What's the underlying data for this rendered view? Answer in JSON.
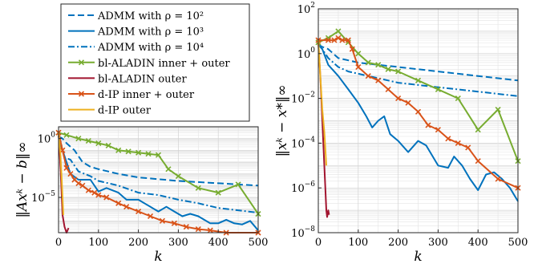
{
  "figure": {
    "legend": [
      {
        "label": "ADMM with ρ = 10²",
        "color": "#0072BD",
        "dash": "dashed",
        "marker": ""
      },
      {
        "label": "ADMM with ρ = 10³",
        "color": "#0072BD",
        "dash": "solid",
        "marker": ""
      },
      {
        "label": "ADMM with ρ = 10⁴",
        "color": "#0072BD",
        "dash": "dashdot",
        "marker": ""
      },
      {
        "label": "bl-ALADIN inner + outer",
        "color": "#77AC30",
        "dash": "solid",
        "marker": "x"
      },
      {
        "label": "bl-ALADIN outer",
        "color": "#A2142F",
        "dash": "solid",
        "marker": ""
      },
      {
        "label": "d-IP inner + outer",
        "color": "#D95319",
        "dash": "solid",
        "marker": "x"
      },
      {
        "label": "d-IP outer",
        "color": "#EDB120",
        "dash": "solid",
        "marker": ""
      }
    ]
  },
  "chart_data": [
    {
      "type": "line",
      "ylabel": "‖Axᵏ − b‖∞",
      "xlabel": "k",
      "xlim": [
        0,
        500
      ],
      "ylim_log10": [
        -8,
        1
      ],
      "yscale": "log",
      "grid": true,
      "xticks": [
        "0",
        "100",
        "200",
        "300",
        "400",
        "500"
      ],
      "yticks": [
        {
          "base": "10",
          "exp": "0",
          "log10": 0
        },
        {
          "base": "10",
          "exp": "−5",
          "log10": -5
        }
      ],
      "series": [
        {
          "name": "ADMM with ρ = 10²",
          "log10_y": [
            [
              0,
              0.2
            ],
            [
              10,
              0
            ],
            [
              20,
              -0.4
            ],
            [
              40,
              -1.0
            ],
            [
              60,
              -2.0
            ],
            [
              80,
              -2.4
            ],
            [
              100,
              -2.6
            ],
            [
              150,
              -3.0
            ],
            [
              200,
              -3.3
            ],
            [
              300,
              -3.6
            ],
            [
              400,
              -3.8
            ],
            [
              500,
              -4.0
            ]
          ]
        },
        {
          "name": "ADMM with ρ = 10³",
          "log10_y": [
            [
              0,
              0.2
            ],
            [
              5,
              -0.5
            ],
            [
              15,
              -1.5
            ],
            [
              30,
              -3.0
            ],
            [
              50,
              -3.5
            ],
            [
              80,
              -3.5
            ],
            [
              100,
              -4.5
            ],
            [
              120,
              -4.2
            ],
            [
              150,
              -4.6
            ],
            [
              170,
              -5.2
            ],
            [
              200,
              -5.2
            ],
            [
              220,
              -5.6
            ],
            [
              250,
              -6.2
            ],
            [
              270,
              -5.8
            ],
            [
              290,
              -6.2
            ],
            [
              310,
              -6.6
            ],
            [
              330,
              -6.4
            ],
            [
              350,
              -6.6
            ],
            [
              380,
              -7.2
            ],
            [
              400,
              -7.2
            ],
            [
              420,
              -6.9
            ],
            [
              440,
              -7.2
            ],
            [
              460,
              -7.3
            ],
            [
              480,
              -7.0
            ],
            [
              500,
              -7.8
            ]
          ]
        },
        {
          "name": "ADMM with ρ = 10⁴",
          "log10_y": [
            [
              0,
              0.2
            ],
            [
              5,
              -0.2
            ],
            [
              10,
              -1.0
            ],
            [
              15,
              -1.6
            ],
            [
              30,
              -1.8
            ],
            [
              50,
              -2.8
            ],
            [
              80,
              -3.2
            ],
            [
              100,
              -3.6
            ],
            [
              150,
              -4.0
            ],
            [
              200,
              -4.6
            ],
            [
              250,
              -4.8
            ],
            [
              300,
              -5.2
            ],
            [
              350,
              -5.5
            ],
            [
              400,
              -5.9
            ],
            [
              450,
              -6.1
            ],
            [
              500,
              -6.3
            ]
          ]
        },
        {
          "name": "bl-ALADIN inner + outer",
          "marker": "x",
          "log10_y": [
            [
              0,
              0.5
            ],
            [
              20,
              0.3
            ],
            [
              50,
              0
            ],
            [
              75,
              -0.2
            ],
            [
              100,
              -0.4
            ],
            [
              125,
              -0.6
            ],
            [
              150,
              -1.0
            ],
            [
              175,
              -1.1
            ],
            [
              200,
              -1.2
            ],
            [
              225,
              -1.3
            ],
            [
              250,
              -1.4
            ],
            [
              275,
              -2.6
            ],
            [
              300,
              -3.2
            ],
            [
              350,
              -4.2
            ],
            [
              400,
              -4.6
            ],
            [
              450,
              -3.9
            ],
            [
              500,
              -6.4
            ]
          ]
        },
        {
          "name": "bl-ALADIN outer",
          "log10_y": [
            [
              0,
              0.5
            ],
            [
              5,
              -2.5
            ],
            [
              10,
              -6.5
            ],
            [
              15,
              -7.5
            ],
            [
              20,
              -8.0
            ],
            [
              25,
              -7.6
            ]
          ]
        },
        {
          "name": "d-IP inner + outer",
          "marker": "x",
          "log10_y": [
            [
              0,
              0.5
            ],
            [
              10,
              -1.0
            ],
            [
              20,
              -2.5
            ],
            [
              30,
              -3.0
            ],
            [
              40,
              -3.5
            ],
            [
              50,
              -3.8
            ],
            [
              60,
              -4.0
            ],
            [
              75,
              -4.4
            ],
            [
              90,
              -4.6
            ],
            [
              100,
              -4.8
            ],
            [
              120,
              -5.0
            ],
            [
              150,
              -5.5
            ],
            [
              170,
              -5.8
            ],
            [
              200,
              -6.2
            ],
            [
              230,
              -6.6
            ],
            [
              260,
              -7.0
            ],
            [
              290,
              -7.2
            ],
            [
              320,
              -7.5
            ],
            [
              350,
              -7.7
            ],
            [
              380,
              -7.8
            ],
            [
              420,
              -8.0
            ],
            [
              500,
              -8.5
            ]
          ]
        },
        {
          "name": "d-IP outer",
          "log10_y": [
            [
              0,
              0.5
            ],
            [
              5,
              -1.5
            ],
            [
              8,
              -3.5
            ],
            [
              10,
              -5.0
            ],
            [
              12,
              -6.5
            ]
          ]
        }
      ]
    },
    {
      "type": "line",
      "ylabel": "‖xᵏ − x*‖∞",
      "xlabel": "k",
      "xlim": [
        0,
        500
      ],
      "ylim_log10": [
        -8,
        2
      ],
      "yscale": "log",
      "grid": true,
      "xticks": [
        "0",
        "100",
        "200",
        "300",
        "400",
        "500"
      ],
      "yticks": [
        {
          "base": "10",
          "exp": "2",
          "log10": 2
        },
        {
          "base": "10",
          "exp": "0",
          "log10": 0
        },
        {
          "base": "10",
          "exp": "−2",
          "log10": -2
        },
        {
          "base": "10",
          "exp": "−4",
          "log10": -4
        },
        {
          "base": "10",
          "exp": "−6",
          "log10": -6
        },
        {
          "base": "10",
          "exp": "−8",
          "log10": -8
        }
      ],
      "series": [
        {
          "name": "ADMM with ρ = 10²",
          "log10_y": [
            [
              0,
              0.4
            ],
            [
              10,
              0.3
            ],
            [
              25,
              0.2
            ],
            [
              50,
              -0.2
            ],
            [
              75,
              -0.3
            ],
            [
              100,
              -0.4
            ],
            [
              150,
              -0.5
            ],
            [
              200,
              -0.6
            ],
            [
              300,
              -0.8
            ],
            [
              400,
              -1.0
            ],
            [
              500,
              -1.2
            ]
          ]
        },
        {
          "name": "ADMM with ρ = 10³",
          "log10_y": [
            [
              0,
              0.4
            ],
            [
              10,
              0.2
            ],
            [
              25,
              -0.5
            ],
            [
              50,
              -1.0
            ],
            [
              75,
              -1.6
            ],
            [
              100,
              -2.2
            ],
            [
              120,
              -2.8
            ],
            [
              135,
              -3.3
            ],
            [
              150,
              -3.0
            ],
            [
              165,
              -2.8
            ],
            [
              180,
              -3.6
            ],
            [
              200,
              -3.9
            ],
            [
              225,
              -4.4
            ],
            [
              250,
              -3.9
            ],
            [
              270,
              -4.1
            ],
            [
              300,
              -5.0
            ],
            [
              325,
              -5.1
            ],
            [
              340,
              -4.6
            ],
            [
              360,
              -5.0
            ],
            [
              380,
              -5.6
            ],
            [
              400,
              -6.1
            ],
            [
              420,
              -5.4
            ],
            [
              440,
              -5.3
            ],
            [
              460,
              -5.6
            ],
            [
              480,
              -6.0
            ],
            [
              500,
              -6.6
            ]
          ]
        },
        {
          "name": "ADMM with ρ = 10⁴",
          "log10_y": [
            [
              0,
              0.4
            ],
            [
              10,
              0.2
            ],
            [
              25,
              -0.2
            ],
            [
              50,
              -0.6
            ],
            [
              75,
              -0.8
            ],
            [
              100,
              -0.9
            ],
            [
              150,
              -1.1
            ],
            [
              200,
              -1.3
            ],
            [
              300,
              -1.5
            ],
            [
              400,
              -1.7
            ],
            [
              500,
              -1.9
            ]
          ]
        },
        {
          "name": "bl-ALADIN inner + outer",
          "marker": "x",
          "log10_y": [
            [
              0,
              0.5
            ],
            [
              25,
              0.7
            ],
            [
              50,
              1.0
            ],
            [
              75,
              0.5
            ],
            [
              100,
              0.0
            ],
            [
              125,
              -0.4
            ],
            [
              150,
              -0.5
            ],
            [
              175,
              -0.7
            ],
            [
              200,
              -0.8
            ],
            [
              250,
              -1.2
            ],
            [
              300,
              -1.6
            ],
            [
              350,
              -2.0
            ],
            [
              400,
              -3.4
            ],
            [
              450,
              -2.5
            ],
            [
              500,
              -4.8
            ]
          ]
        },
        {
          "name": "bl-ALADIN outer",
          "log10_y": [
            [
              0,
              0.5
            ],
            [
              5,
              -1.0
            ],
            [
              10,
              -3.0
            ],
            [
              15,
              -5.0
            ],
            [
              20,
              -7.0
            ],
            [
              22,
              -7.3
            ],
            [
              25,
              -7.0
            ],
            [
              27,
              -7.2
            ]
          ]
        },
        {
          "name": "d-IP inner + outer",
          "marker": "x",
          "log10_y": [
            [
              0,
              0.6
            ],
            [
              25,
              0.6
            ],
            [
              40,
              0.6
            ],
            [
              50,
              0.7
            ],
            [
              60,
              0.6
            ],
            [
              75,
              0.6
            ],
            [
              85,
              0.2
            ],
            [
              100,
              -0.6
            ],
            [
              125,
              -1.0
            ],
            [
              150,
              -1.2
            ],
            [
              175,
              -1.6
            ],
            [
              200,
              -2.0
            ],
            [
              225,
              -2.2
            ],
            [
              250,
              -2.6
            ],
            [
              275,
              -3.2
            ],
            [
              300,
              -3.4
            ],
            [
              325,
              -3.8
            ],
            [
              350,
              -4.0
            ],
            [
              375,
              -4.2
            ],
            [
              400,
              -4.8
            ],
            [
              450,
              -5.6
            ],
            [
              500,
              -6.0
            ]
          ]
        },
        {
          "name": "d-IP outer",
          "log10_y": [
            [
              0,
              0.6
            ],
            [
              5,
              -1.0
            ],
            [
              10,
              -2.5
            ],
            [
              15,
              -3.5
            ],
            [
              20,
              -5.0
            ]
          ]
        }
      ]
    }
  ]
}
